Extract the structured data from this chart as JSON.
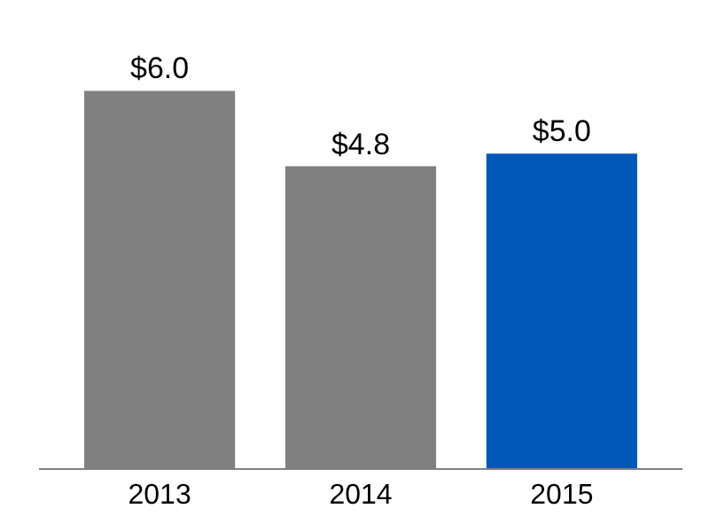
{
  "chart_data": {
    "type": "bar",
    "categories": [
      "2013",
      "2014",
      "2015"
    ],
    "values": [
      6.0,
      4.8,
      5.0
    ],
    "colors": [
      "#808080",
      "#808080",
      "#0057b8"
    ],
    "value_labels": [
      "$6.0",
      "$4.8",
      "$5.0"
    ]
  }
}
